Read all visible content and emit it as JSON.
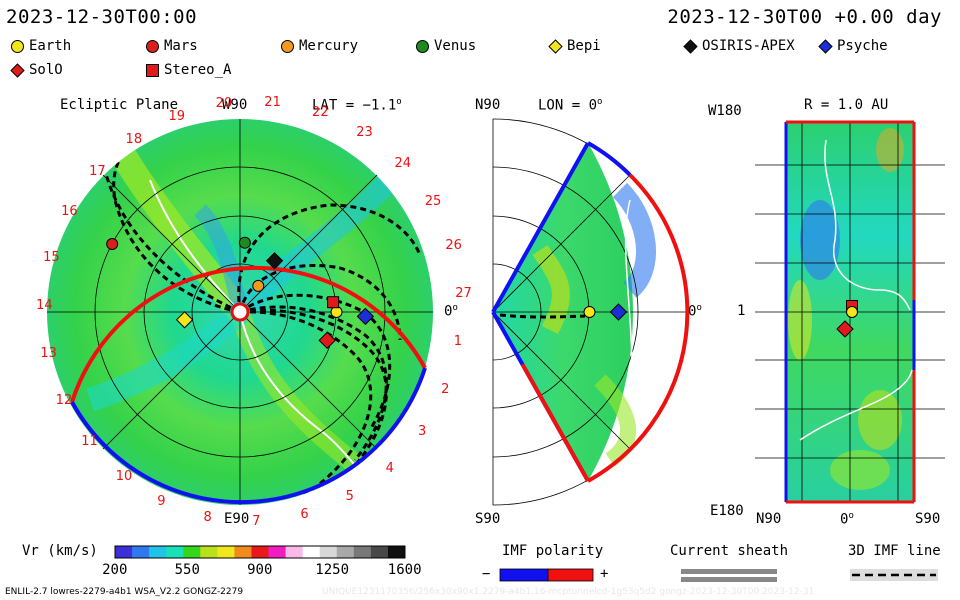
{
  "header": {
    "left_time": "2023-12-30T00:00",
    "right_time": "2023-12-30T00 +0.00 day"
  },
  "legend": [
    {
      "name": "Earth",
      "marker": "circle",
      "color": "#f3e51c"
    },
    {
      "name": "Mars",
      "marker": "circle",
      "color": "#d8201c"
    },
    {
      "name": "Mercury",
      "marker": "circle",
      "color": "#f29a1f"
    },
    {
      "name": "Venus",
      "marker": "circle",
      "color": "#1f8a1f"
    },
    {
      "name": "Bepi",
      "marker": "diamond",
      "color": "#f5e51c"
    },
    {
      "name": "OSIRIS-APEX",
      "marker": "diamond",
      "color": "#111111"
    },
    {
      "name": "Psyche",
      "marker": "diamond",
      "color": "#1a2fd8"
    },
    {
      "name": "SolO",
      "marker": "diamond",
      "color": "#e01a1a"
    },
    {
      "name": "Stereo_A",
      "marker": "square",
      "color": "#e01a1a"
    }
  ],
  "panels": {
    "ecliptic": {
      "title": "Ecliptic Plane",
      "top_label": "W90",
      "lat_label": "LAT = −1.1",
      "deg": "o",
      "bottom_label": "E90",
      "right_label": "0",
      "carrington_ticks": [
        "27",
        "1",
        "2",
        "3",
        "4",
        "5",
        "6",
        "7",
        "8",
        "9",
        "10",
        "11",
        "12",
        "13",
        "14",
        "15",
        "16",
        "17",
        "18",
        "19",
        "20",
        "21",
        "22",
        "23",
        "24",
        "25",
        "26"
      ]
    },
    "meridional": {
      "top_label": "N90",
      "lon_label": "LON = 0",
      "deg": "o",
      "bottom_label": "S90",
      "right_label": "0"
    },
    "map": {
      "title": "R = 1.0 AU",
      "y_top": "W180",
      "y_mid": "1",
      "y_bottom": "E180",
      "x_left": "N90",
      "x_mid": "0",
      "x_right": "S90"
    }
  },
  "colorbar": {
    "label": "Vr (km/s)",
    "ticks": [
      "200",
      "550",
      "900",
      "1250",
      "1600"
    ],
    "colors": [
      "#3b2fd8",
      "#2f78f0",
      "#1fc4e8",
      "#18e0b8",
      "#36d61c",
      "#b8e01c",
      "#f0e81c",
      "#f08a1c",
      "#e8181c",
      "#f01cc0",
      "#f8b8e8",
      "#ffffff",
      "#d8d8d8",
      "#a8a8a8",
      "#787878",
      "#484848",
      "#101010"
    ]
  },
  "imf": {
    "label": "IMF polarity",
    "minus": "−",
    "plus": "+",
    "neg_color": "#1010f0",
    "pos_color": "#f01010"
  },
  "sheath": {
    "label": "Current sheath"
  },
  "imf3d": {
    "label": "3D IMF line"
  },
  "footer": {
    "left": "ENLIL-2.7 lowres-2279-a4b1 WSA_V2.2 GONGZ-2279",
    "right": "UNIQUE1231170356/256x30x90x1.2279-a4b1.16-mcptunnelcd-1g53q5d2.gongz-2023-12-30T00 2023-12-31"
  },
  "chart_data": {
    "type": "heatmap",
    "title": "Vr (km/s) at 2023-12-30T00 +0.00 day",
    "variable": "Vr (km/s)",
    "color_range": [
      200,
      1600
    ],
    "bodies_ecliptic": [
      {
        "name": "Earth",
        "lon_deg": 0,
        "r_au": 1.0
      },
      {
        "name": "Mars",
        "lon_deg": 152,
        "r_au": 1.5
      },
      {
        "name": "Mercury",
        "lon_deg": 55,
        "r_au": 0.33
      },
      {
        "name": "Venus",
        "lon_deg": 86,
        "r_au": 0.72
      },
      {
        "name": "Bepi",
        "lon_deg": -172,
        "r_au": 0.58
      },
      {
        "name": "OSIRIS-APEX",
        "lon_deg": 56,
        "r_au": 0.64
      },
      {
        "name": "Psyche",
        "lon_deg": -2,
        "r_au": 1.3
      },
      {
        "name": "SolO",
        "lon_deg": -18,
        "r_au": 0.95
      },
      {
        "name": "Stereo_A",
        "lon_deg": 6,
        "r_au": 0.97
      }
    ]
  }
}
